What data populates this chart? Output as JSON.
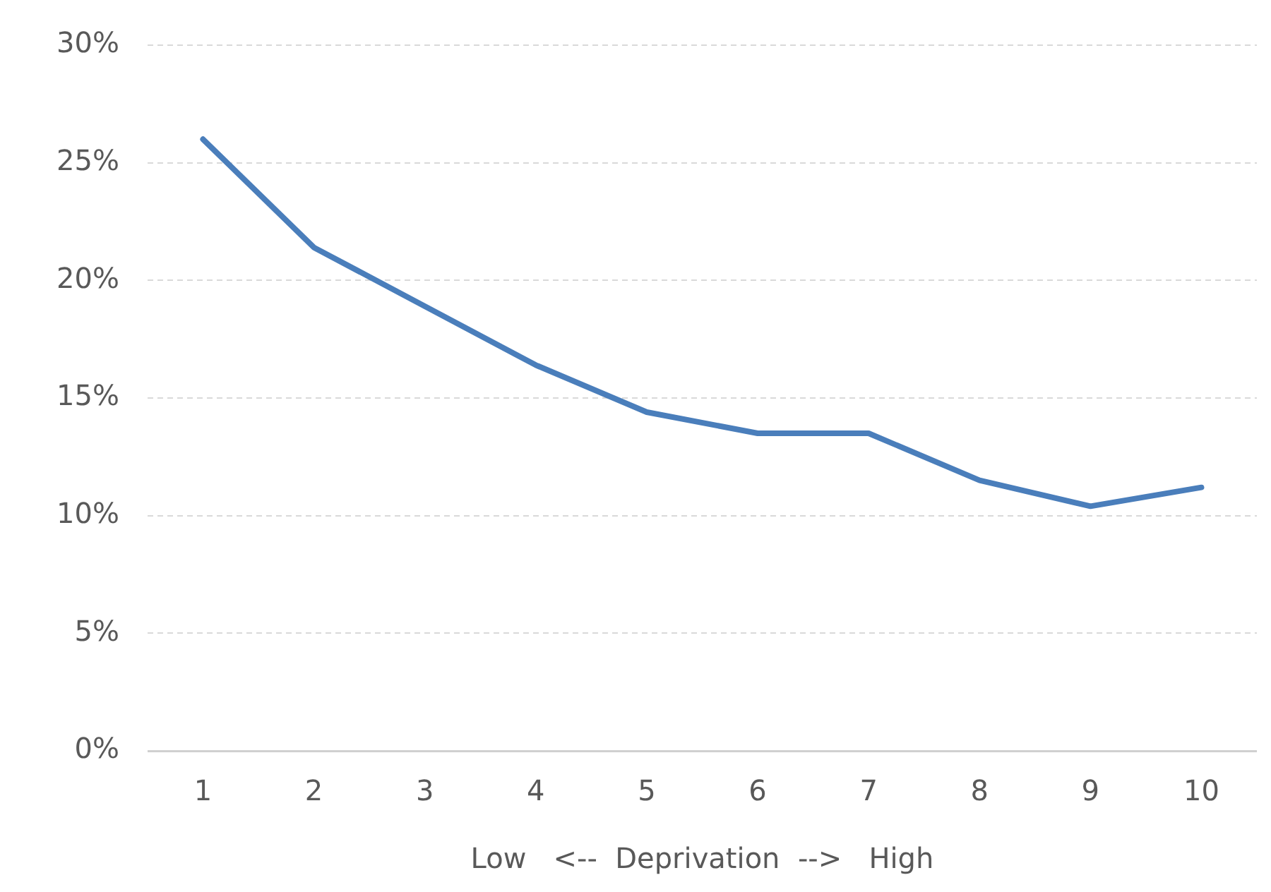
{
  "chart_data": {
    "type": "line",
    "xlabel": "Low   <--  Deprivation  -->   High",
    "categories": [
      "1",
      "2",
      "3",
      "4",
      "5",
      "6",
      "7",
      "8",
      "9",
      "10"
    ],
    "series": [
      {
        "color": "#4a7ebb",
        "values": [
          26,
          21.4,
          18.9,
          16.4,
          14.4,
          13.5,
          13.5,
          11.5,
          10.4,
          11.2
        ]
      }
    ],
    "ylim": [
      0,
      30
    ],
    "yticks": [
      {
        "value": 0,
        "label": "0%"
      },
      {
        "value": 5,
        "label": "5%"
      },
      {
        "value": 10,
        "label": "10%"
      },
      {
        "value": 15,
        "label": "15%"
      },
      {
        "value": 20,
        "label": "20%"
      },
      {
        "value": 25,
        "label": "25%"
      },
      {
        "value": 30,
        "label": "30%"
      }
    ],
    "grid": "y",
    "legend": false,
    "marker": "none",
    "line_style": "solid"
  }
}
